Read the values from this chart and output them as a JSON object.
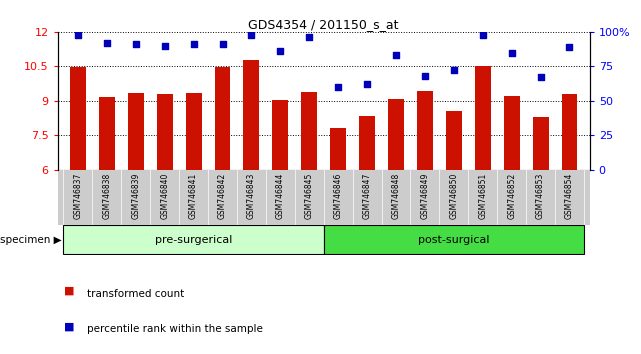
{
  "title": "GDS4354 / 201150_s_at",
  "samples": [
    "GSM746837",
    "GSM746838",
    "GSM746839",
    "GSM746840",
    "GSM746841",
    "GSM746842",
    "GSM746843",
    "GSM746844",
    "GSM746845",
    "GSM746846",
    "GSM746847",
    "GSM746848",
    "GSM746849",
    "GSM746850",
    "GSM746851",
    "GSM746852",
    "GSM746853",
    "GSM746854"
  ],
  "bar_values": [
    10.48,
    9.18,
    9.35,
    9.28,
    9.32,
    10.48,
    10.78,
    9.02,
    9.38,
    7.82,
    8.32,
    9.08,
    9.42,
    8.55,
    10.52,
    9.22,
    8.28,
    9.28
  ],
  "dot_values": [
    98,
    92,
    91,
    90,
    91,
    91,
    98,
    86,
    96,
    60,
    62,
    83,
    68,
    72,
    98,
    85,
    67,
    89
  ],
  "ylim_left": [
    6,
    12
  ],
  "ylim_right": [
    0,
    100
  ],
  "yticks_left": [
    6,
    7.5,
    9,
    10.5,
    12
  ],
  "yticks_right": [
    0,
    25,
    50,
    75,
    100
  ],
  "ytick_labels_right": [
    "0",
    "25",
    "50",
    "75",
    "100%"
  ],
  "bar_color": "#cc1100",
  "dot_color": "#0000bb",
  "pre_surgical_count": 9,
  "post_surgical_count": 9,
  "group_label_pre": "pre-surgerical",
  "group_label_post": "post-surgical",
  "pre_color": "#ccffcc",
  "post_color": "#44dd44",
  "specimen_label": "specimen",
  "legend_bar_label": "transformed count",
  "legend_dot_label": "percentile rank within the sample",
  "background_color": "#ffffff",
  "tick_bg_color": "#cccccc",
  "grid_color": "#555555"
}
